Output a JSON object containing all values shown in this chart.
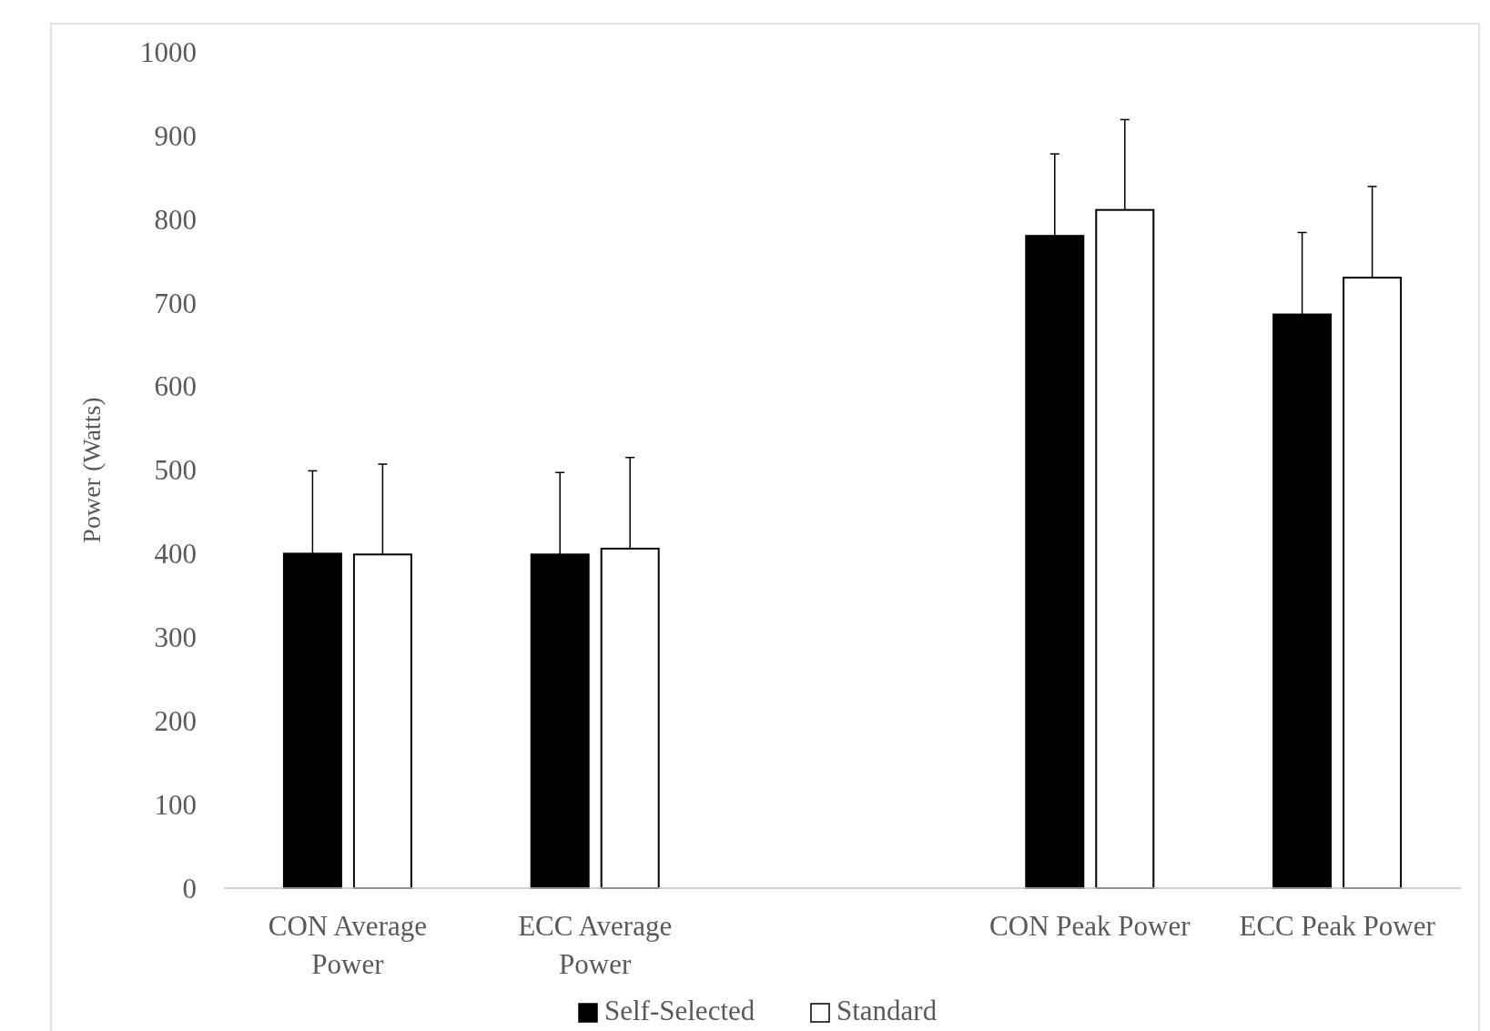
{
  "chart_data": {
    "type": "bar",
    "ylabel": "Power (Watts)",
    "categories": [
      "CON Average Power",
      "ECC Average Power",
      null,
      "CON Peak Power",
      "ECC Peak Power"
    ],
    "series": [
      {
        "name": "Self-Selected",
        "color": "#000000",
        "values": [
          400,
          399,
          null,
          780,
          686
        ],
        "errors": [
          [
            400,
            499
          ],
          [
            399,
            497
          ],
          null,
          [
            780,
            878
          ],
          [
            686,
            784
          ]
        ]
      },
      {
        "name": "Standard",
        "color": "#ffffff",
        "values": [
          399,
          406,
          null,
          811,
          730
        ],
        "errors": [
          [
            399,
            507
          ],
          [
            406,
            515
          ],
          null,
          [
            811,
            919
          ],
          [
            730,
            839
          ]
        ]
      }
    ],
    "ylim": [
      0,
      1000
    ],
    "yticks": [
      0,
      100,
      200,
      300,
      400,
      500,
      600,
      700,
      800,
      900,
      1000
    ],
    "grid": false,
    "legend": "bottom"
  }
}
